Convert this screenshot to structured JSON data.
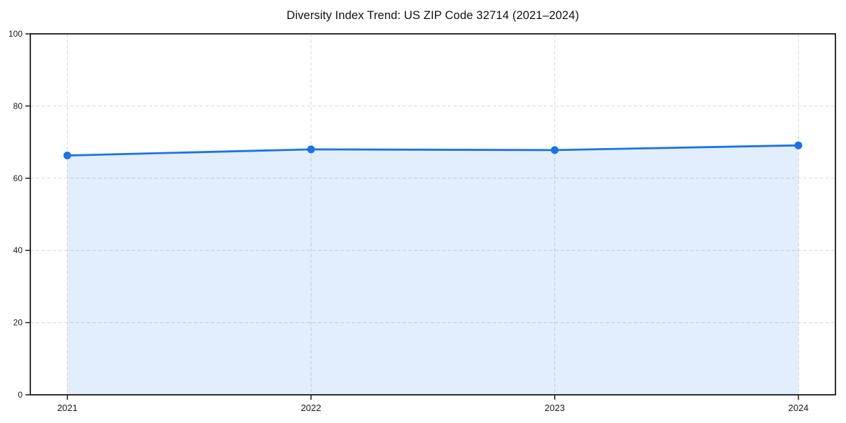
{
  "chart_data": {
    "type": "area",
    "title": "Diversity Index Trend: US ZIP Code 32714 (2021–2024)",
    "categories": [
      "2021",
      "2022",
      "2023",
      "2024"
    ],
    "values": [
      66.3,
      68.0,
      67.8,
      69.1
    ],
    "xlabel": "",
    "ylabel": "",
    "ylim": [
      0,
      100
    ],
    "yticks": [
      0,
      20,
      40,
      60,
      80,
      100
    ],
    "grid": {
      "visible": true,
      "style": "dashed",
      "axes": "both"
    },
    "legend": "none",
    "x_padding_frac": 0.046,
    "colors": {
      "line": "#1a73e8",
      "marker": "#1a73e8",
      "fill": "#1a73e8",
      "fill_opacity": 0.12,
      "grid": "#d8d8d8",
      "spine": "#1a1a1a",
      "tick_label": "#1a1a1a",
      "title": "#111111",
      "background": "#ffffff"
    }
  }
}
